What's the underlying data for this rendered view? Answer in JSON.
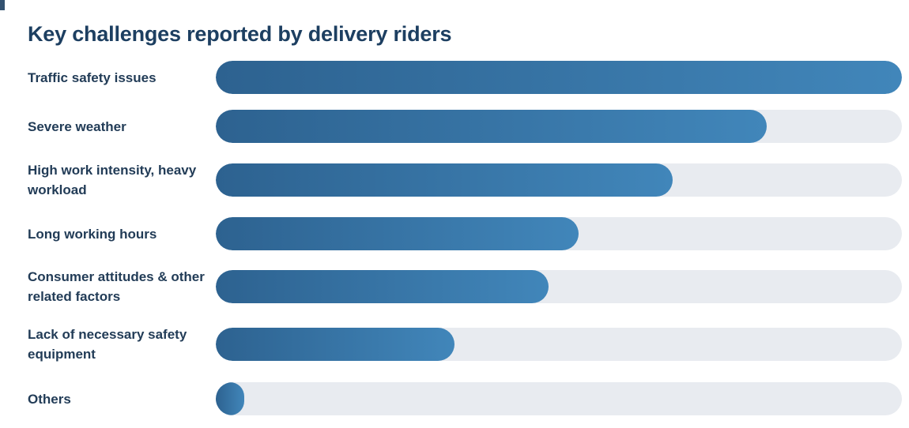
{
  "colors": {
    "bar_gradient_start": "#2d6290",
    "bar_gradient_end": "#4186ba",
    "track": "#e8ebf0",
    "title_text": "#1d3f61",
    "label_text": "#223c57"
  },
  "chart_data": {
    "type": "bar",
    "orientation": "horizontal",
    "title": "Key challenges reported by delivery riders",
    "categories": [
      "Traffic safety issues",
      "Severe weather",
      "High work intensity, heavy workload",
      "Long working hours",
      "Consumer attitudes & other related factors",
      "Lack of necessary safety equipment",
      "Others"
    ],
    "values": [
      100,
      80.3,
      66.6,
      52.9,
      48.5,
      34.8,
      4.1
    ],
    "value_unit": "percent of longest bar (estimated from bar lengths; no numeric data labels shown)",
    "xlabel": "",
    "ylabel": "",
    "xlim": [
      0,
      100
    ],
    "grid": false,
    "legend": false,
    "bar_style": "rounded pill on light track, left-to-right blue gradient"
  }
}
